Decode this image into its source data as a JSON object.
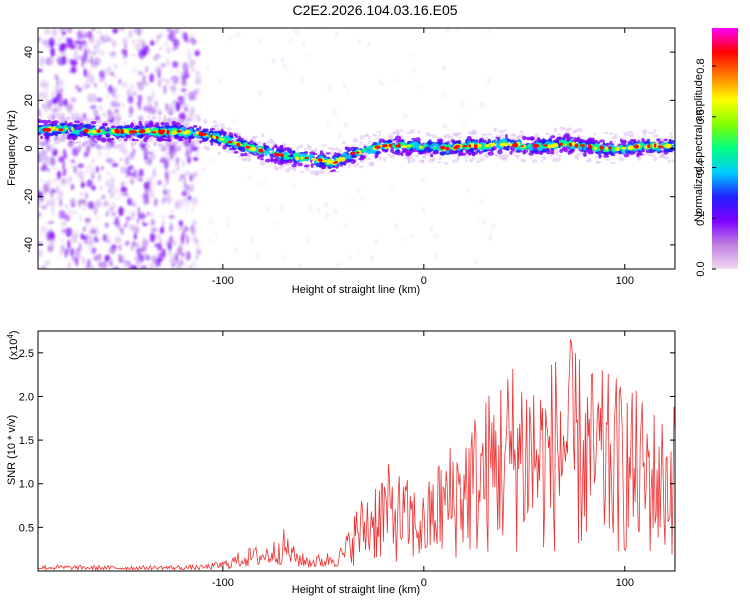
{
  "title": "C2E2.2026.104.03.16.E05",
  "chart_data": [
    {
      "type": "heatmap",
      "xlabel": "Height of straight line (km)",
      "ylabel": "Frequency (Hz)",
      "xlim": [
        -192,
        125
      ],
      "ylim": [
        -50,
        50
      ],
      "xticks": [
        -100,
        0,
        100
      ],
      "yticks": [
        -40,
        -20,
        0,
        20,
        40
      ],
      "colorbar": {
        "label": "Normalized spectral amplitude",
        "range": [
          0,
          0.95
        ],
        "ticks": [
          "0.0",
          "0.2",
          "0.4",
          "0.6",
          "0.8"
        ],
        "tick_values": [
          0.0,
          0.2,
          0.4,
          0.6,
          0.8
        ],
        "colors": [
          "#f2d9f2",
          "#c080e0",
          "#7f00ff",
          "#2020ff",
          "#00ccff",
          "#00ff80",
          "#80ff00",
          "#ffff00",
          "#ff8000",
          "#ff0000",
          "#ff00ff"
        ]
      },
      "ridge": {
        "x": [
          -192,
          -180,
          -160,
          -140,
          -120,
          -110,
          -100,
          -90,
          -80,
          -70,
          -60,
          -50,
          -45,
          -40,
          -35,
          -30,
          -25,
          -20,
          -10,
          0,
          10,
          20,
          30,
          40,
          50,
          60,
          70,
          80,
          90,
          100,
          110,
          120,
          125
        ],
        "freq": [
          8,
          8,
          7,
          7,
          7,
          6,
          4,
          1,
          -1,
          -3,
          -4,
          -5,
          -6,
          -4,
          -2,
          -1,
          0,
          1,
          1,
          1,
          0,
          1,
          1,
          2,
          1,
          1,
          2,
          1,
          0,
          0,
          1,
          1,
          1
        ]
      },
      "noise_region_xmax": -120
    },
    {
      "type": "line",
      "xlabel": "Height of straight line (km)",
      "ylabel": "SNR (10 * v/v)",
      "exponent_label": "(x10",
      "exponent_power": "4",
      "exponent_close": ")",
      "xlim": [
        -192,
        125
      ],
      "ylim": [
        0,
        27500
      ],
      "xticks": [
        -100,
        0,
        100
      ],
      "yticks": [
        "0.5",
        "1.0",
        "1.5",
        "2.0",
        "2.5"
      ],
      "ytick_values": [
        5000,
        10000,
        15000,
        20000,
        25000
      ],
      "series": [
        {
          "name": "SNR",
          "color": "#ee3333",
          "envelope_x": [
            -192,
            -150,
            -110,
            -100,
            -95,
            -90,
            -85,
            -80,
            -75,
            -70,
            -65,
            -60,
            -55,
            -50,
            -45,
            -40,
            -35,
            -30,
            -25,
            -20,
            -15,
            -10,
            -5,
            0,
            5,
            10,
            20,
            30,
            40,
            50,
            60,
            70,
            75,
            80,
            90,
            100,
            110,
            120,
            125
          ],
          "envelope_y": [
            700,
            600,
            700,
            1200,
            1800,
            2500,
            2800,
            3000,
            3500,
            5000,
            3000,
            2000,
            1800,
            2000,
            2500,
            3000,
            7000,
            9000,
            11000,
            12500,
            12000,
            11000,
            10000,
            9000,
            12000,
            14000,
            17000,
            20000,
            24000,
            25500,
            23000,
            27500,
            26000,
            24000,
            23000,
            22000,
            20000,
            18000,
            20000
          ]
        }
      ]
    }
  ]
}
